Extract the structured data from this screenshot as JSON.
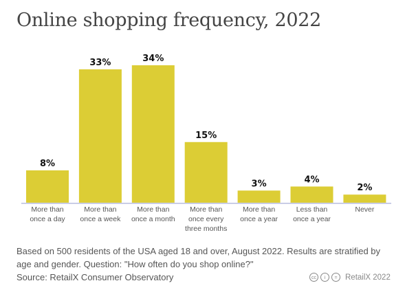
{
  "chart_data": {
    "type": "bar",
    "title": "Online shopping frequency, 2022",
    "categories": [
      [
        "More than",
        "once a day"
      ],
      [
        "More than",
        "once a week"
      ],
      [
        "More than",
        "once a month"
      ],
      [
        "More than",
        "once every",
        "three months"
      ],
      [
        "More than",
        "once a year"
      ],
      [
        "Less than",
        "once a year"
      ],
      [
        "Never"
      ]
    ],
    "values": [
      8,
      33,
      34,
      15,
      3,
      4,
      2
    ],
    "data_labels": [
      "8%",
      "33%",
      "34%",
      "15%",
      "3%",
      "4%",
      "2%"
    ],
    "xlabel": "",
    "ylabel": "",
    "ylim": [
      0,
      34
    ],
    "grid": false,
    "bar_color": "#dccd35",
    "axis_color": "#c9cde6"
  },
  "footnote": {
    "line1": "Based on 500 residents of the USA aged 18 and over, August 2022. Results are stratified by",
    "line2": "age and gender. Question: \"How often do you shop online?\"",
    "source": "Source: RetailX Consumer Observatory"
  },
  "credit": {
    "icons": [
      "cc-icon",
      "attribution-icon",
      "no-derivatives-icon"
    ],
    "text": "RetailX 2022"
  }
}
